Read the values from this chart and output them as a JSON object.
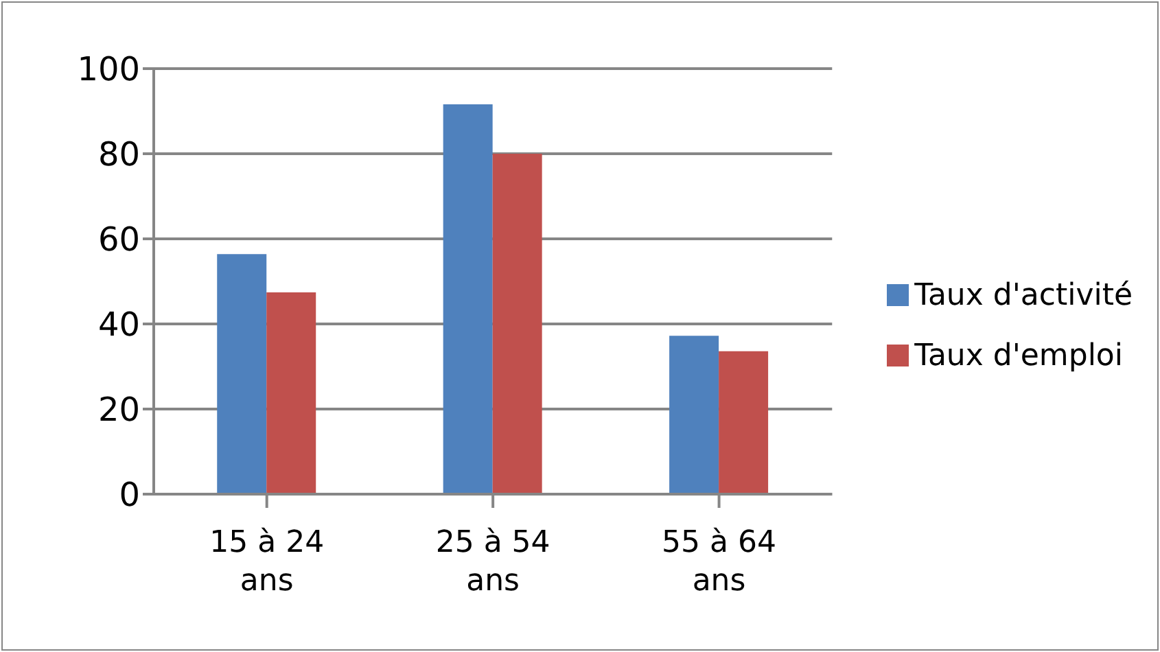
{
  "chart_data": {
    "type": "bar",
    "categories": [
      "15 à 24 ans",
      "25 à 54 ans",
      "55 à 64 ans"
    ],
    "series": [
      {
        "name": "Taux d'activité",
        "color": "#4f81bd",
        "values": [
          56.4,
          91.6,
          37.2
        ]
      },
      {
        "name": "Taux d'emploi",
        "color": "#c0504d",
        "values": [
          47.4,
          80.0,
          33.6
        ]
      }
    ],
    "ylim": [
      0,
      100
    ],
    "yticks": [
      0,
      20,
      40,
      60,
      80,
      100
    ],
    "grid": "y",
    "legend": "right"
  }
}
